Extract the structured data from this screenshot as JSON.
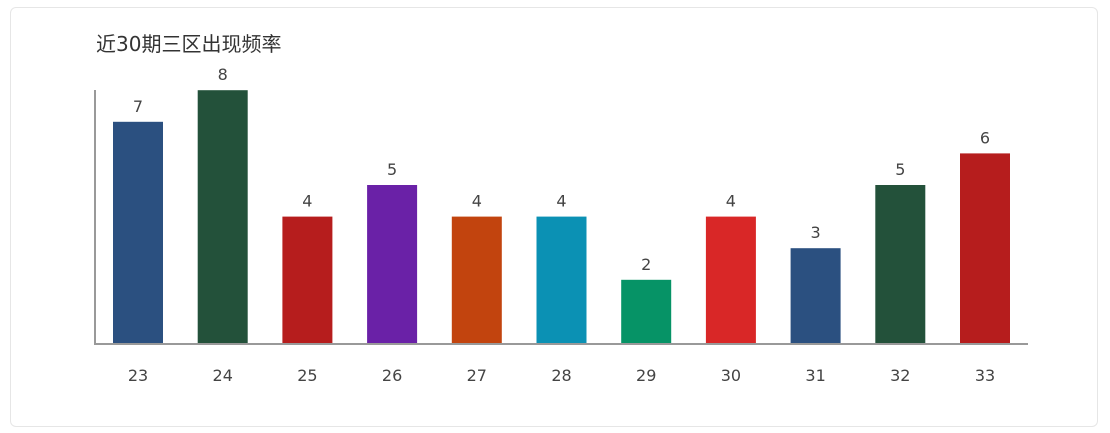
{
  "chart_data": {
    "type": "bar",
    "title": "近30期三区出现频率",
    "xlabel": "",
    "ylabel": "",
    "categories": [
      "23",
      "24",
      "25",
      "26",
      "27",
      "28",
      "29",
      "30",
      "31",
      "32",
      "33"
    ],
    "values": [
      7,
      8,
      4,
      5,
      4,
      4,
      2,
      4,
      3,
      5,
      6
    ],
    "colors": [
      "#2b5080",
      "#23513a",
      "#b61d1d",
      "#6a21a7",
      "#c2440e",
      "#0b91b4",
      "#069366",
      "#d92727",
      "#2b5080",
      "#23513a",
      "#b61d1d"
    ],
    "ylim": [
      0,
      8
    ],
    "grid": false,
    "data_labels": true
  }
}
